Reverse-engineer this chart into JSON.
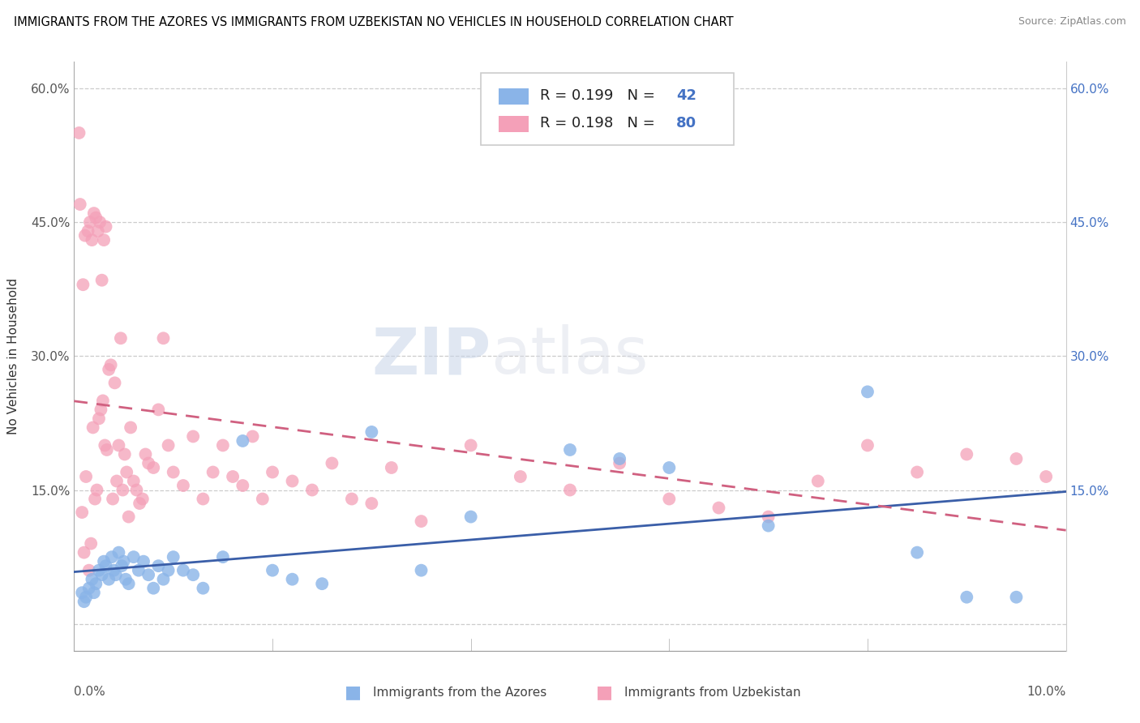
{
  "title": "IMMIGRANTS FROM THE AZORES VS IMMIGRANTS FROM UZBEKISTAN NO VEHICLES IN HOUSEHOLD CORRELATION CHART",
  "source": "Source: ZipAtlas.com",
  "ylabel": "No Vehicles in Household",
  "xmin": 0.0,
  "xmax": 10.0,
  "ymin": -3.0,
  "ymax": 63.0,
  "yticks": [
    0.0,
    15.0,
    30.0,
    45.0,
    60.0
  ],
  "legend_label1": "Immigrants from the Azores",
  "legend_label2": "Immigrants from Uzbekistan",
  "color_azores": "#8AB4E8",
  "color_uzbekistan": "#F4A0B8",
  "color_trend_azores": "#3A5EA8",
  "color_trend_uzbekistan": "#D06080",
  "watermark_zip": "ZIP",
  "watermark_atlas": "atlas",
  "azores_x": [
    0.08,
    0.1,
    0.12,
    0.15,
    0.18,
    0.2,
    0.22,
    0.25,
    0.28,
    0.3,
    0.32,
    0.35,
    0.38,
    0.4,
    0.42,
    0.45,
    0.48,
    0.5,
    0.52,
    0.55,
    0.6,
    0.65,
    0.7,
    0.75,
    0.8,
    0.85,
    0.9,
    0.95,
    1.0,
    1.1,
    1.2,
    1.3,
    1.5,
    1.7,
    2.0,
    2.2,
    2.5,
    3.0,
    3.5,
    4.0,
    5.0,
    5.5,
    6.0,
    7.0,
    8.0,
    8.5,
    9.0,
    9.5
  ],
  "azores_y": [
    3.5,
    2.5,
    3.0,
    4.0,
    5.0,
    3.5,
    4.5,
    6.0,
    5.5,
    7.0,
    6.5,
    5.0,
    7.5,
    6.0,
    5.5,
    8.0,
    6.5,
    7.0,
    5.0,
    4.5,
    7.5,
    6.0,
    7.0,
    5.5,
    4.0,
    6.5,
    5.0,
    6.0,
    7.5,
    6.0,
    5.5,
    4.0,
    7.5,
    20.5,
    6.0,
    5.0,
    4.5,
    21.5,
    6.0,
    12.0,
    19.5,
    18.5,
    17.5,
    11.0,
    26.0,
    8.0,
    3.0,
    3.0
  ],
  "uzbekistan_x": [
    0.05,
    0.08,
    0.1,
    0.12,
    0.15,
    0.17,
    0.19,
    0.21,
    0.23,
    0.25,
    0.27,
    0.29,
    0.31,
    0.33,
    0.35,
    0.37,
    0.39,
    0.41,
    0.43,
    0.45,
    0.47,
    0.49,
    0.51,
    0.53,
    0.55,
    0.57,
    0.6,
    0.63,
    0.66,
    0.69,
    0.72,
    0.75,
    0.8,
    0.85,
    0.9,
    0.95,
    1.0,
    1.1,
    1.2,
    1.3,
    1.4,
    1.5,
    1.6,
    1.7,
    1.8,
    1.9,
    2.0,
    2.2,
    2.4,
    2.6,
    2.8,
    3.0,
    3.2,
    3.5,
    4.0,
    4.5,
    5.0,
    5.5,
    6.0,
    6.5,
    7.0,
    7.5,
    8.0,
    8.5,
    9.0,
    9.5,
    9.8,
    0.06,
    0.09,
    0.11,
    0.14,
    0.16,
    0.18,
    0.2,
    0.22,
    0.24,
    0.26,
    0.28,
    0.3,
    0.32
  ],
  "uzbekistan_y": [
    55.0,
    12.5,
    8.0,
    16.5,
    6.0,
    9.0,
    22.0,
    14.0,
    15.0,
    23.0,
    24.0,
    25.0,
    20.0,
    19.5,
    28.5,
    29.0,
    14.0,
    27.0,
    16.0,
    20.0,
    32.0,
    15.0,
    19.0,
    17.0,
    12.0,
    22.0,
    16.0,
    15.0,
    13.5,
    14.0,
    19.0,
    18.0,
    17.5,
    24.0,
    32.0,
    20.0,
    17.0,
    15.5,
    21.0,
    14.0,
    17.0,
    20.0,
    16.5,
    15.5,
    21.0,
    14.0,
    17.0,
    16.0,
    15.0,
    18.0,
    14.0,
    13.5,
    17.5,
    11.5,
    20.0,
    16.5,
    15.0,
    18.0,
    14.0,
    13.0,
    12.0,
    16.0,
    20.0,
    17.0,
    19.0,
    18.5,
    16.5,
    47.0,
    38.0,
    43.5,
    44.0,
    45.0,
    43.0,
    46.0,
    45.5,
    44.0,
    45.0,
    38.5,
    43.0,
    44.5
  ]
}
